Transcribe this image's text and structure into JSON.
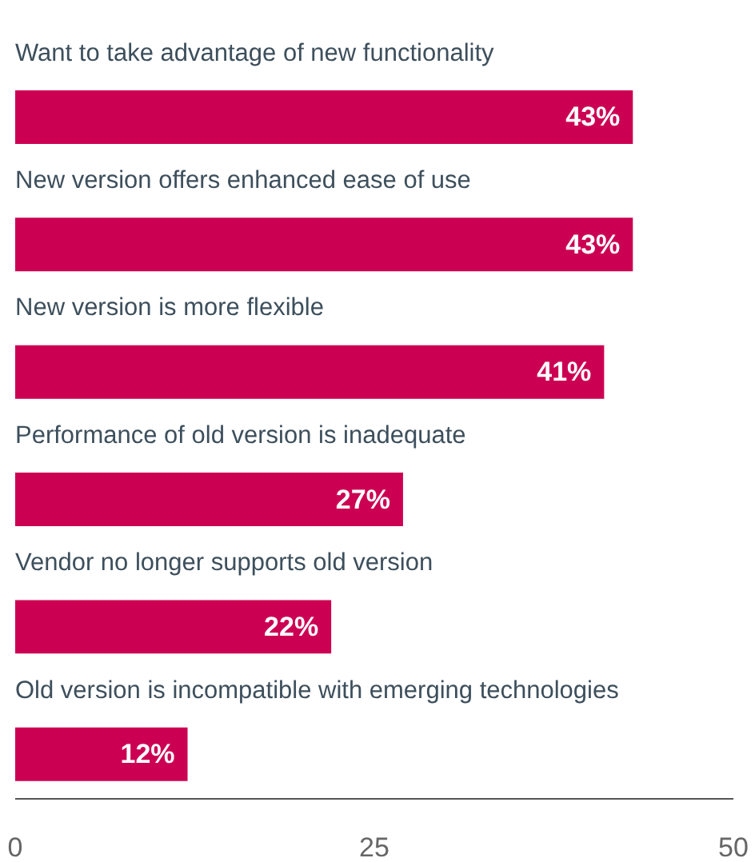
{
  "chart_data": {
    "type": "bar",
    "orientation": "horizontal",
    "categories": [
      "Want to take advantage of new functionality",
      "New version offers enhanced ease of use",
      "New version is more flexible",
      "Performance of old version is inadequate",
      "Vendor no longer supports old version",
      "Old version is incompatible with emerging technologies"
    ],
    "values": [
      43,
      43,
      41,
      27,
      22,
      12
    ],
    "value_labels": [
      "43%",
      "43%",
      "41%",
      "27%",
      "22%",
      "12%"
    ],
    "color": "#cc0052",
    "xlim": [
      0,
      50
    ],
    "xticks": [
      0,
      25,
      50
    ],
    "grid": false
  }
}
